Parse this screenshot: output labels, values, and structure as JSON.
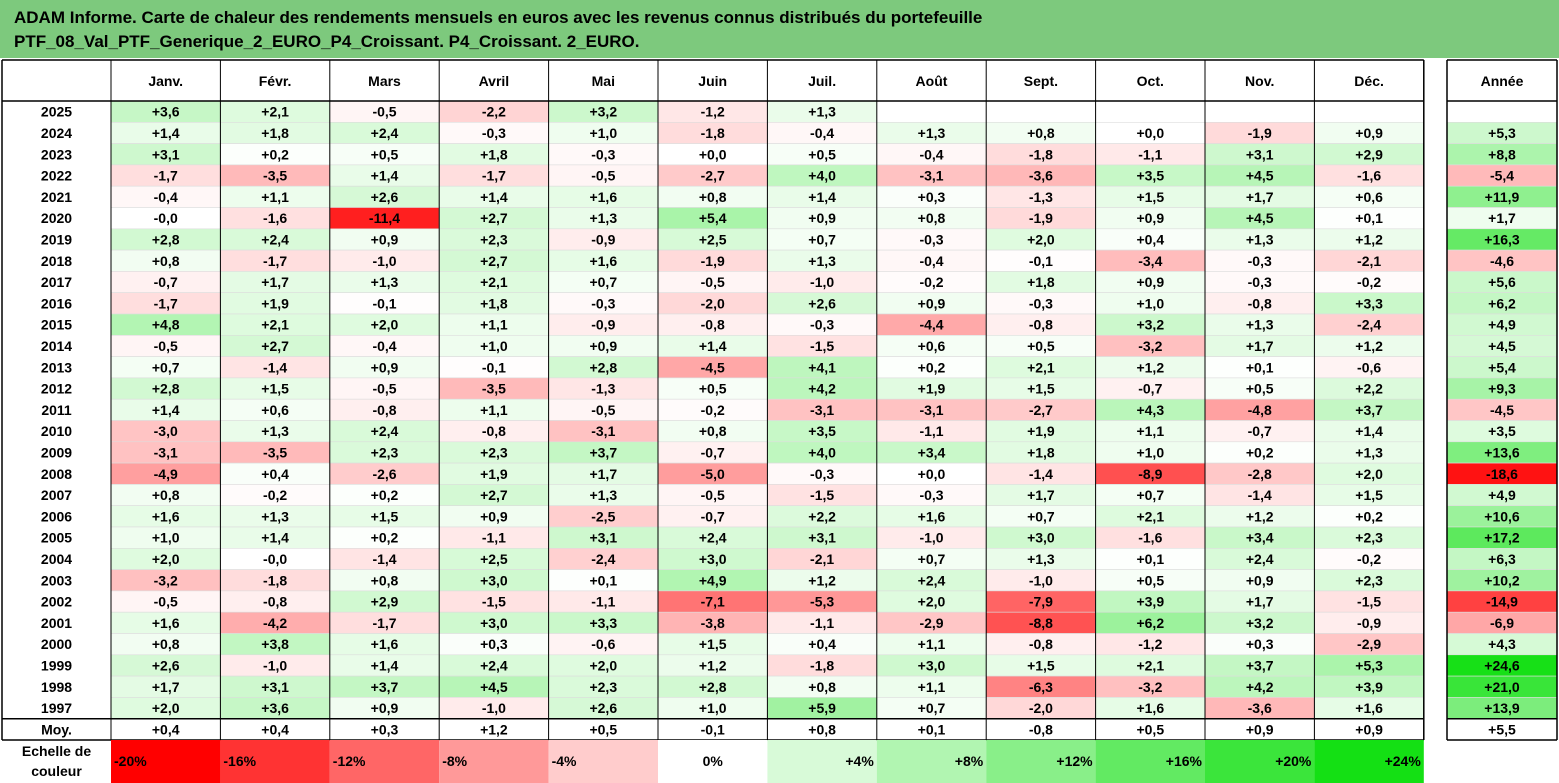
{
  "title": {
    "line1": "ADAM Informe. Carte de chaleur des rendements mensuels en euros avec les revenus connus distribués du portefeuille",
    "line2": "PTF_08_Val_PTF_Generique_2_EURO_P4_Croissant. P4_Croissant. 2_EURO."
  },
  "chart_data": {
    "type": "heatmap",
    "columns": [
      "Janv.",
      "Févr.",
      "Mars",
      "Avril",
      "Mai",
      "Juin",
      "Juil.",
      "Août",
      "Sept.",
      "Oct.",
      "Nov.",
      "Déc."
    ],
    "annual_label": "Année",
    "average_label": "Moy.",
    "rows": [
      {
        "year": "2025",
        "values": [
          "+3,6",
          "+2,1",
          "-0,5",
          "-2,2",
          "+3,2",
          "-1,2",
          "+1,3",
          "",
          "",
          "",
          "",
          ""
        ],
        "annual": ""
      },
      {
        "year": "2024",
        "values": [
          "+1,4",
          "+1,8",
          "+2,4",
          "-0,3",
          "+1,0",
          "-1,8",
          "-0,4",
          "+1,3",
          "+0,8",
          "+0,0",
          "-1,9",
          "+0,9"
        ],
        "annual": "+5,3"
      },
      {
        "year": "2023",
        "values": [
          "+3,1",
          "+0,2",
          "+0,5",
          "+1,8",
          "-0,3",
          "+0,0",
          "+0,5",
          "-0,4",
          "-1,8",
          "-1,1",
          "+3,1",
          "+2,9"
        ],
        "annual": "+8,8"
      },
      {
        "year": "2022",
        "values": [
          "-1,7",
          "-3,5",
          "+1,4",
          "-1,7",
          "-0,5",
          "-2,7",
          "+4,0",
          "-3,1",
          "-3,6",
          "+3,5",
          "+4,5",
          "-1,6"
        ],
        "annual": "-5,4"
      },
      {
        "year": "2021",
        "values": [
          "-0,4",
          "+1,1",
          "+2,6",
          "+1,4",
          "+1,6",
          "+0,8",
          "+1,4",
          "+0,3",
          "-1,3",
          "+1,5",
          "+1,7",
          "+0,6"
        ],
        "annual": "+11,9"
      },
      {
        "year": "2020",
        "values": [
          "-0,0",
          "-1,6",
          "-11,4",
          "+2,7",
          "+1,3",
          "+5,4",
          "+0,9",
          "+0,8",
          "-1,9",
          "+0,9",
          "+4,5",
          "+0,1"
        ],
        "annual": "+1,7"
      },
      {
        "year": "2019",
        "values": [
          "+2,8",
          "+2,4",
          "+0,9",
          "+2,3",
          "-0,9",
          "+2,5",
          "+0,7",
          "-0,3",
          "+2,0",
          "+0,4",
          "+1,3",
          "+1,2"
        ],
        "annual": "+16,3"
      },
      {
        "year": "2018",
        "values": [
          "+0,8",
          "-1,7",
          "-1,0",
          "+2,7",
          "+1,6",
          "-1,9",
          "+1,3",
          "-0,4",
          "-0,1",
          "-3,4",
          "-0,3",
          "-2,1"
        ],
        "annual": "-4,6"
      },
      {
        "year": "2017",
        "values": [
          "-0,7",
          "+1,7",
          "+1,3",
          "+2,1",
          "+0,7",
          "-0,5",
          "-1,0",
          "-0,2",
          "+1,8",
          "+0,9",
          "-0,3",
          "-0,2"
        ],
        "annual": "+5,6"
      },
      {
        "year": "2016",
        "values": [
          "-1,7",
          "+1,9",
          "-0,1",
          "+1,8",
          "-0,3",
          "-2,0",
          "+2,6",
          "+0,9",
          "-0,3",
          "+1,0",
          "-0,8",
          "+3,3"
        ],
        "annual": "+6,2"
      },
      {
        "year": "2015",
        "values": [
          "+4,8",
          "+2,1",
          "+2,0",
          "+1,1",
          "-0,9",
          "-0,8",
          "-0,3",
          "-4,4",
          "-0,8",
          "+3,2",
          "+1,3",
          "-2,4"
        ],
        "annual": "+4,9"
      },
      {
        "year": "2014",
        "values": [
          "-0,5",
          "+2,7",
          "-0,4",
          "+1,0",
          "+0,9",
          "+1,4",
          "-1,5",
          "+0,6",
          "+0,5",
          "-3,2",
          "+1,7",
          "+1,2"
        ],
        "annual": "+4,5"
      },
      {
        "year": "2013",
        "values": [
          "+0,7",
          "-1,4",
          "+0,9",
          "-0,1",
          "+2,8",
          "-4,5",
          "+4,1",
          "+0,2",
          "+2,1",
          "+1,2",
          "+0,1",
          "-0,6"
        ],
        "annual": "+5,4"
      },
      {
        "year": "2012",
        "values": [
          "+2,8",
          "+1,5",
          "-0,5",
          "-3,5",
          "-1,3",
          "+0,5",
          "+4,2",
          "+1,9",
          "+1,5",
          "-0,7",
          "+0,5",
          "+2,2"
        ],
        "annual": "+9,3"
      },
      {
        "year": "2011",
        "values": [
          "+1,4",
          "+0,6",
          "-0,8",
          "+1,1",
          "-0,5",
          "-0,2",
          "-3,1",
          "-3,1",
          "-2,7",
          "+4,3",
          "-4,8",
          "+3,7"
        ],
        "annual": "-4,5"
      },
      {
        "year": "2010",
        "values": [
          "-3,0",
          "+1,3",
          "+2,4",
          "-0,8",
          "-3,1",
          "+0,8",
          "+3,5",
          "-1,1",
          "+1,9",
          "+1,1",
          "-0,7",
          "+1,4"
        ],
        "annual": "+3,5"
      },
      {
        "year": "2009",
        "values": [
          "-3,1",
          "-3,5",
          "+2,3",
          "+2,3",
          "+3,7",
          "-0,7",
          "+4,0",
          "+3,4",
          "+1,8",
          "+1,0",
          "+0,2",
          "+1,3"
        ],
        "annual": "+13,6"
      },
      {
        "year": "2008",
        "values": [
          "-4,9",
          "+0,4",
          "-2,6",
          "+1,9",
          "+1,7",
          "-5,0",
          "-0,3",
          "+0,0",
          "-1,4",
          "-8,9",
          "-2,8",
          "+2,0"
        ],
        "annual": "-18,6"
      },
      {
        "year": "2007",
        "values": [
          "+0,8",
          "-0,2",
          "+0,2",
          "+2,7",
          "+1,3",
          "-0,5",
          "-1,5",
          "-0,3",
          "+1,7",
          "+0,7",
          "-1,4",
          "+1,5"
        ],
        "annual": "+4,9"
      },
      {
        "year": "2006",
        "values": [
          "+1,6",
          "+1,3",
          "+1,5",
          "+0,9",
          "-2,5",
          "-0,7",
          "+2,2",
          "+1,6",
          "+0,7",
          "+2,1",
          "+1,2",
          "+0,2"
        ],
        "annual": "+10,6"
      },
      {
        "year": "2005",
        "values": [
          "+1,0",
          "+1,4",
          "+0,2",
          "-1,1",
          "+3,1",
          "+2,4",
          "+3,1",
          "-1,0",
          "+3,0",
          "-1,6",
          "+3,4",
          "+2,3"
        ],
        "annual": "+17,2"
      },
      {
        "year": "2004",
        "values": [
          "+2,0",
          "-0,0",
          "-1,4",
          "+2,5",
          "-2,4",
          "+3,0",
          "-2,1",
          "+0,7",
          "+1,3",
          "+0,1",
          "+2,4",
          "-0,2"
        ],
        "annual": "+6,3"
      },
      {
        "year": "2003",
        "values": [
          "-3,2",
          "-1,8",
          "+0,8",
          "+3,0",
          "+0,1",
          "+4,9",
          "+1,2",
          "+2,4",
          "-1,0",
          "+0,5",
          "+0,9",
          "+2,3"
        ],
        "annual": "+10,2"
      },
      {
        "year": "2002",
        "values": [
          "-0,5",
          "-0,8",
          "+2,9",
          "-1,5",
          "-1,1",
          "-7,1",
          "-5,3",
          "+2,0",
          "-7,9",
          "+3,9",
          "+1,7",
          "-1,5"
        ],
        "annual": "-14,9"
      },
      {
        "year": "2001",
        "values": [
          "+1,6",
          "-4,2",
          "-1,7",
          "+3,0",
          "+3,3",
          "-3,8",
          "-1,1",
          "-2,9",
          "-8,8",
          "+6,2",
          "+3,2",
          "-0,9"
        ],
        "annual": "-6,9"
      },
      {
        "year": "2000",
        "values": [
          "+0,8",
          "+3,8",
          "+1,6",
          "+0,3",
          "-0,6",
          "+1,5",
          "+0,4",
          "+1,1",
          "-0,8",
          "-1,2",
          "+0,3",
          "-2,9"
        ],
        "annual": "+4,3"
      },
      {
        "year": "1999",
        "values": [
          "+2,6",
          "-1,0",
          "+1,4",
          "+2,4",
          "+2,0",
          "+1,2",
          "-1,8",
          "+3,0",
          "+1,5",
          "+2,1",
          "+3,7",
          "+5,3"
        ],
        "annual": "+24,6"
      },
      {
        "year": "1998",
        "values": [
          "+1,7",
          "+3,1",
          "+3,7",
          "+4,5",
          "+2,3",
          "+2,8",
          "+0,8",
          "+1,1",
          "-6,3",
          "-3,2",
          "+4,2",
          "+3,9"
        ],
        "annual": "+21,0"
      },
      {
        "year": "1997",
        "values": [
          "+2,0",
          "+3,6",
          "+0,9",
          "-1,0",
          "+2,6",
          "+1,0",
          "+5,9",
          "+0,7",
          "-2,0",
          "+1,6",
          "-3,6",
          "+1,6"
        ],
        "annual": "+13,9"
      }
    ],
    "averages": {
      "values": [
        "+0,4",
        "+0,4",
        "+0,3",
        "+1,2",
        "+0,5",
        "-0,1",
        "+0,8",
        "+0,1",
        "-0,8",
        "+0,5",
        "+0,9",
        "+0,9"
      ],
      "annual": "+5,5"
    },
    "color_scale": {
      "label_line1": "Echelle de",
      "label_line2": "couleur",
      "steps": [
        {
          "label": "-20%",
          "value": -20
        },
        {
          "label": "-16%",
          "value": -16
        },
        {
          "label": "-12%",
          "value": -12
        },
        {
          "label": "-8%",
          "value": -8
        },
        {
          "label": "-4%",
          "value": -4
        },
        {
          "label": "0%",
          "value": 0
        },
        {
          "label": "+4%",
          "value": 4
        },
        {
          "label": "+8%",
          "value": 8
        },
        {
          "label": "+12%",
          "value": 12
        },
        {
          "label": "+16%",
          "value": 16
        },
        {
          "label": "+20%",
          "value": 20
        },
        {
          "label": "+24%",
          "value": 24
        }
      ]
    },
    "colors": {
      "negative": "#ff0000",
      "positive": "#00dd00",
      "neutral": "#ffffff",
      "title_bar": "#7dc97d"
    }
  }
}
